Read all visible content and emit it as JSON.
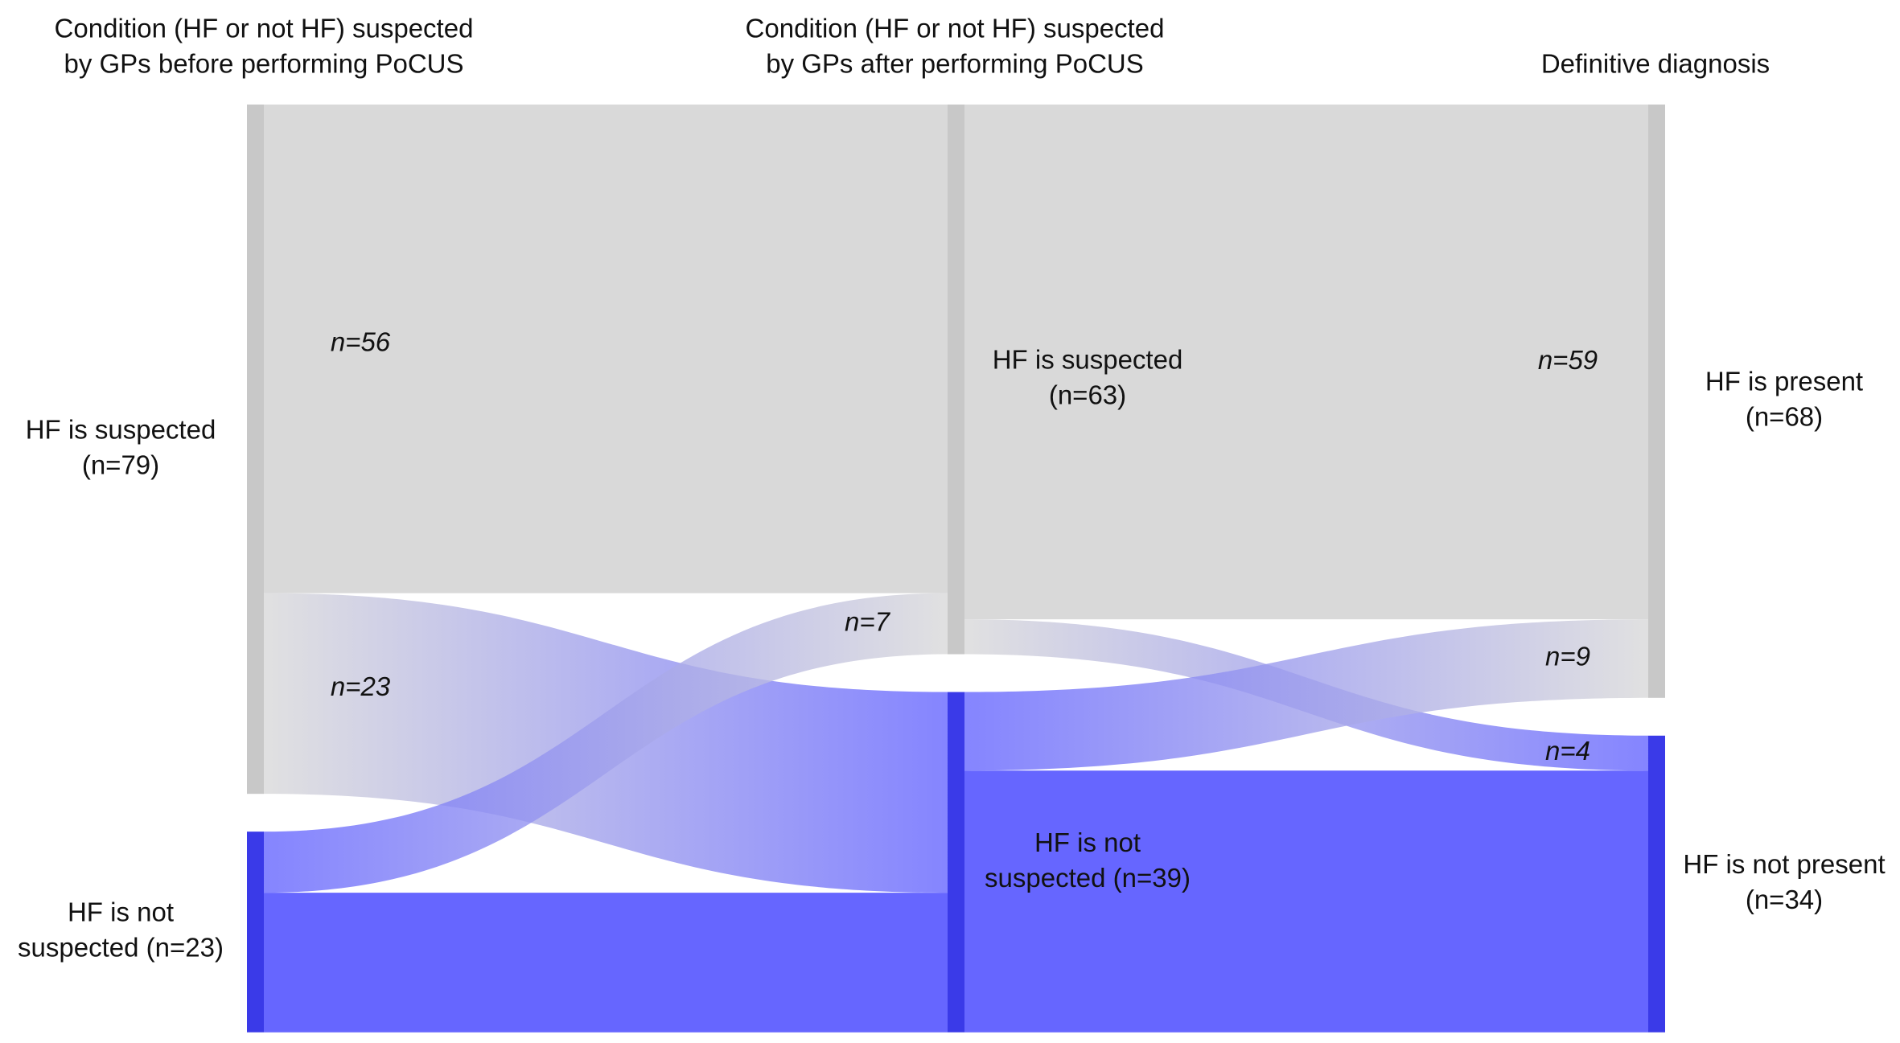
{
  "chart_data": {
    "type": "sankey",
    "columns": [
      {
        "title": [
          "Condition (HF or not HF) suspected",
          "by GPs before performing PoCUS"
        ],
        "nodes": [
          {
            "label": [
              "HF is suspected",
              "(n=79)"
            ],
            "value": 79,
            "color": "#c8c8c8",
            "flow_color": "#d9d9d9"
          },
          {
            "label": [
              "HF is not",
              "suspected (n=23)"
            ],
            "value": 23,
            "color": "#3a3ae8",
            "flow_color": "#6666ff"
          }
        ],
        "flows": {
          "from": [
            0,
            0,
            1,
            1
          ],
          "to": [
            0,
            1,
            0,
            1
          ],
          "values": [
            56,
            23,
            7,
            16
          ],
          "value_labels": [
            "n=56",
            "n=23",
            "n=7",
            null
          ]
        }
      },
      {
        "title": [
          "Condition (HF or not HF) suspected",
          "by GPs after performing PoCUS"
        ],
        "nodes": [
          {
            "label": [
              "HF is suspected",
              "(n=63)"
            ],
            "value": 63,
            "color": "#c8c8c8",
            "flow_color": "#d9d9d9"
          },
          {
            "label": [
              "HF is not",
              "suspected (n=39)"
            ],
            "value": 39,
            "color": "#3a3ae8",
            "flow_color": "#6666ff"
          }
        ],
        "flows": {
          "from": [
            0,
            0,
            1,
            1
          ],
          "to": [
            0,
            1,
            0,
            1
          ],
          "values": [
            59,
            4,
            9,
            30
          ],
          "value_labels": [
            "n=59",
            "n=4",
            "n=9",
            null
          ]
        }
      },
      {
        "title": [
          "Definitive diagnosis"
        ],
        "nodes": [
          {
            "label": [
              "HF is present",
              "(n=68)"
            ],
            "value": 68,
            "color": "#c8c8c8",
            "flow_color": "#d9d9d9"
          },
          {
            "label": [
              "HF is not present",
              "(n=34)"
            ],
            "value": 34,
            "color": "#3a3ae8",
            "flow_color": "#6666ff"
          }
        ]
      }
    ]
  }
}
